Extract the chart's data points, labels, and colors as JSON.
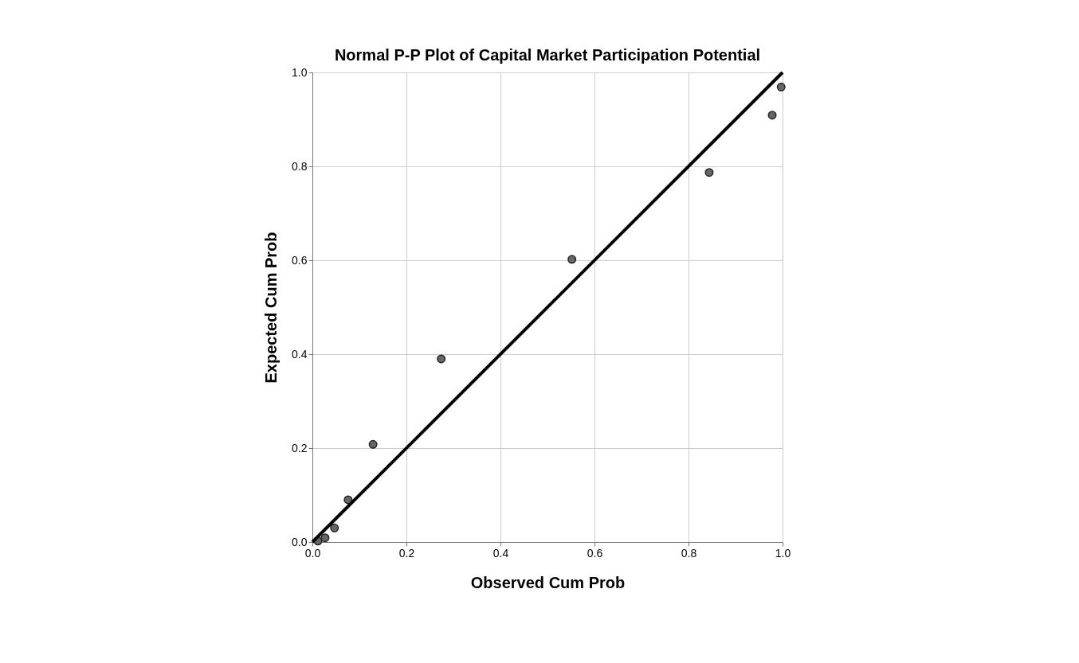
{
  "chart_data": {
    "type": "scatter",
    "title": "Normal P-P Plot of Capital Market Participation Potential",
    "xlabel": "Observed Cum Prob",
    "ylabel": "Expected Cum Prob",
    "series": [
      {
        "color": "#666666",
        "marker": "circle",
        "x": [
          0.012,
          0.027,
          0.047,
          0.076,
          0.129,
          0.274,
          0.552,
          0.844,
          0.978,
          0.997
        ],
        "values": [
          0.002,
          0.009,
          0.03,
          0.09,
          0.208,
          0.39,
          0.602,
          0.787,
          0.909,
          0.969
        ]
      },
      {
        "type": "line",
        "color": "#000000",
        "x": [
          0,
          1
        ],
        "values": [
          0,
          1
        ]
      }
    ],
    "xlim": [
      0,
      1
    ],
    "ylim": [
      0,
      1
    ],
    "xticks": [
      {
        "value": 0,
        "label": "0.0"
      },
      0.2,
      0.4,
      0.6,
      0.8,
      {
        "value": 1,
        "label": "1.0"
      }
    ],
    "yticks": [
      {
        "value": 0,
        "label": "0.0"
      },
      0.2,
      0.4,
      0.6,
      0.8,
      {
        "value": 1,
        "label": "1.0"
      }
    ],
    "grid": true,
    "line_style": "solid"
  }
}
